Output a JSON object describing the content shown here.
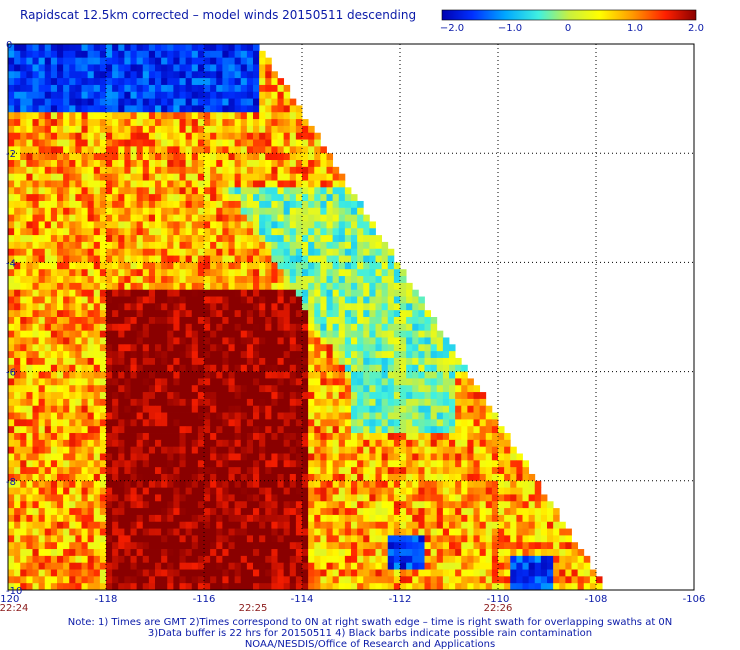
{
  "title": "Rapidscat 12.5km corrected – model winds 20150511 descending",
  "colorbar": {
    "ticks": [
      "−2.0",
      "−1.0",
      "0",
      "1.0",
      "2.0"
    ],
    "min": -2.0,
    "max": 2.0
  },
  "notes": {
    "line1": "Note: 1) Times are GMT 2)Times correspond to 0N at right swath edge – time is right swath for overlapping swaths at 0N",
    "line2": "3)Data buffer is 22 hrs for 20150511 4) Black barbs indicate possible rain contamination",
    "line3": "NOAA/NESDIS/Office of Research and Applications"
  },
  "chart_data": {
    "type": "heatmap",
    "title": "Rapidscat 12.5km corrected – model winds 20150511 descending",
    "xlim": [
      -120,
      -106
    ],
    "ylim": [
      -10,
      0
    ],
    "x_ticks": [
      -120,
      -118,
      -116,
      -114,
      -112,
      -110,
      -108,
      -106
    ],
    "x_tick_labels": [
      "-120",
      "-118",
      "-116",
      "-114",
      "-112",
      "-110",
      "-108",
      "-106"
    ],
    "y_ticks": [
      0,
      -2,
      -4,
      -6,
      -8,
      -10
    ],
    "y_tick_labels": [
      "0",
      "-2",
      "-4",
      "-6",
      "-8",
      "-10"
    ],
    "time_labels": [
      {
        "x": -120,
        "text": "22:24"
      },
      {
        "x": -115,
        "text": "22:25"
      },
      {
        "x": -110,
        "text": "22:26"
      }
    ],
    "value_range": [
      -2.0,
      2.0
    ],
    "grid": true,
    "swath_right_edge": [
      [
        -114.9,
        0
      ],
      [
        -107.8,
        -10
      ]
    ],
    "cell_size_deg": 0.125,
    "regions": [
      {
        "description": "blue/cyan low bias in northwest corner",
        "lon": [
          -120,
          -115
        ],
        "lat": [
          -1.2,
          0
        ],
        "value": -1.5
      },
      {
        "description": "dark red high bias core",
        "lon": [
          -118,
          -114
        ],
        "lat": [
          -10,
          -4.5
        ],
        "value": 2.0
      },
      {
        "description": "cyan/green patch along right edge",
        "lon": [
          -113,
          -111
        ],
        "lat": [
          -7,
          -3
        ],
        "value": -0.3
      },
      {
        "description": "blue patch",
        "lon": [
          -112.3,
          -111.6
        ],
        "lat": [
          -9.6,
          -9.0
        ],
        "value": -1.5
      },
      {
        "description": "blue patch",
        "lon": [
          -109.8,
          -109.0
        ],
        "lat": [
          -10,
          -9.3
        ],
        "value": -1.5
      }
    ]
  }
}
